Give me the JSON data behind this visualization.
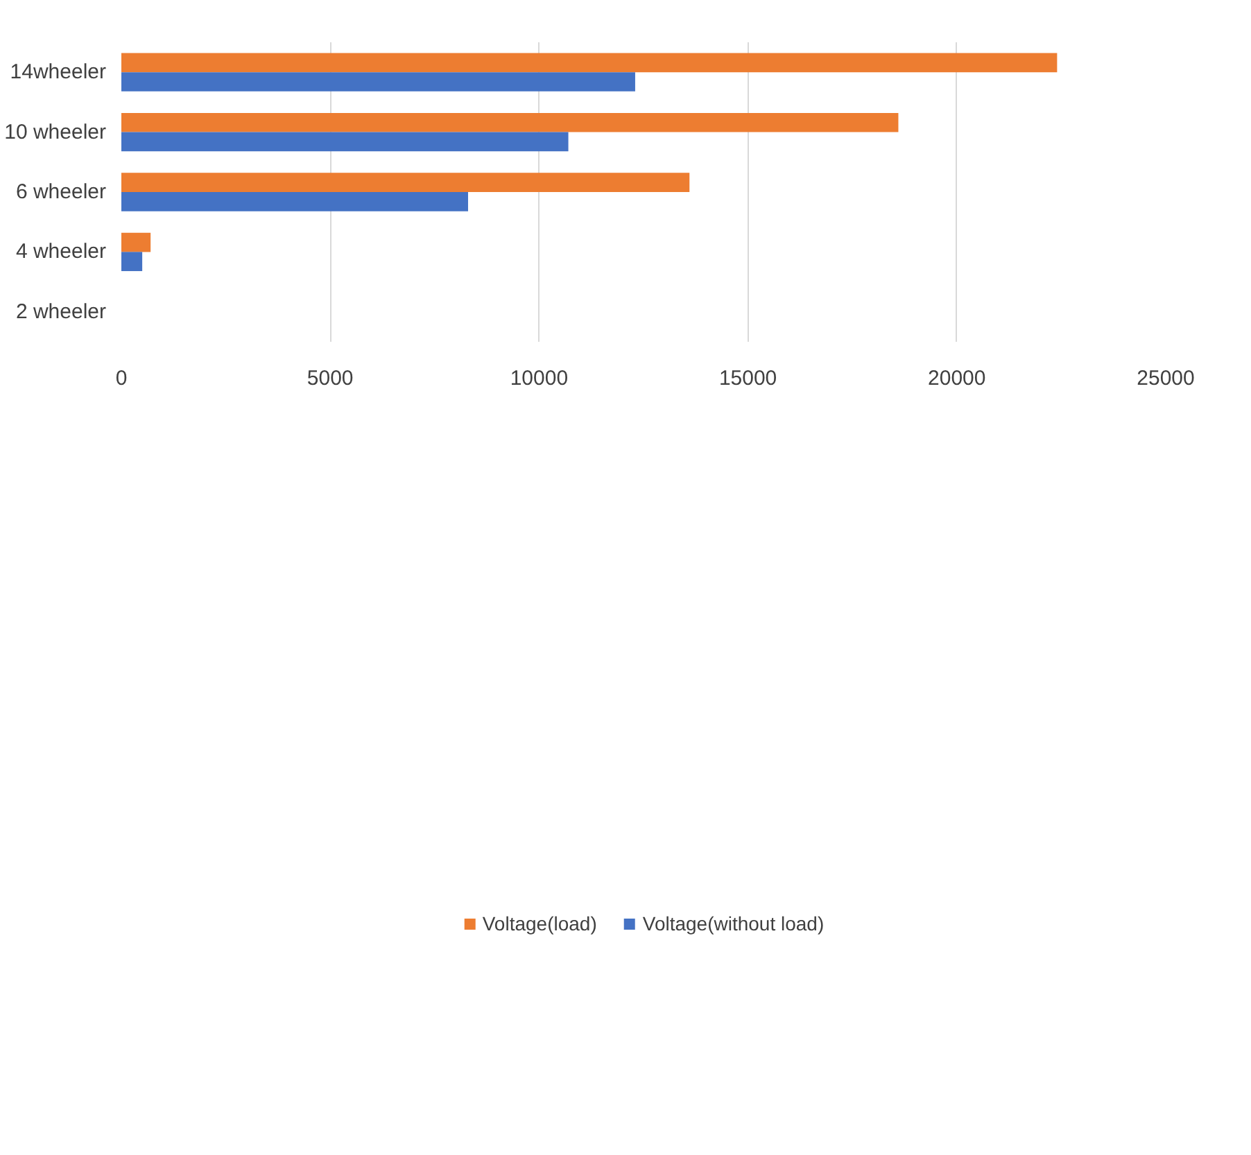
{
  "chart_data": {
    "type": "bar",
    "orientation": "horizontal",
    "categories": [
      "14wheeler",
      "10 wheeler",
      "6 wheeler",
      "4 wheeler",
      "2 wheeler"
    ],
    "series": [
      {
        "name": "Voltage(load)",
        "color": "#ed7d31",
        "values": [
          22400,
          18600,
          13600,
          700,
          0
        ]
      },
      {
        "name": "Voltage(without load)",
        "color": "#4472c4",
        "values": [
          12300,
          10700,
          8300,
          500,
          0
        ]
      }
    ],
    "xlim": [
      0,
      25000
    ],
    "xticks": [
      0,
      5000,
      10000,
      15000,
      20000,
      25000
    ],
    "grid": "x",
    "legend": "bottom"
  }
}
